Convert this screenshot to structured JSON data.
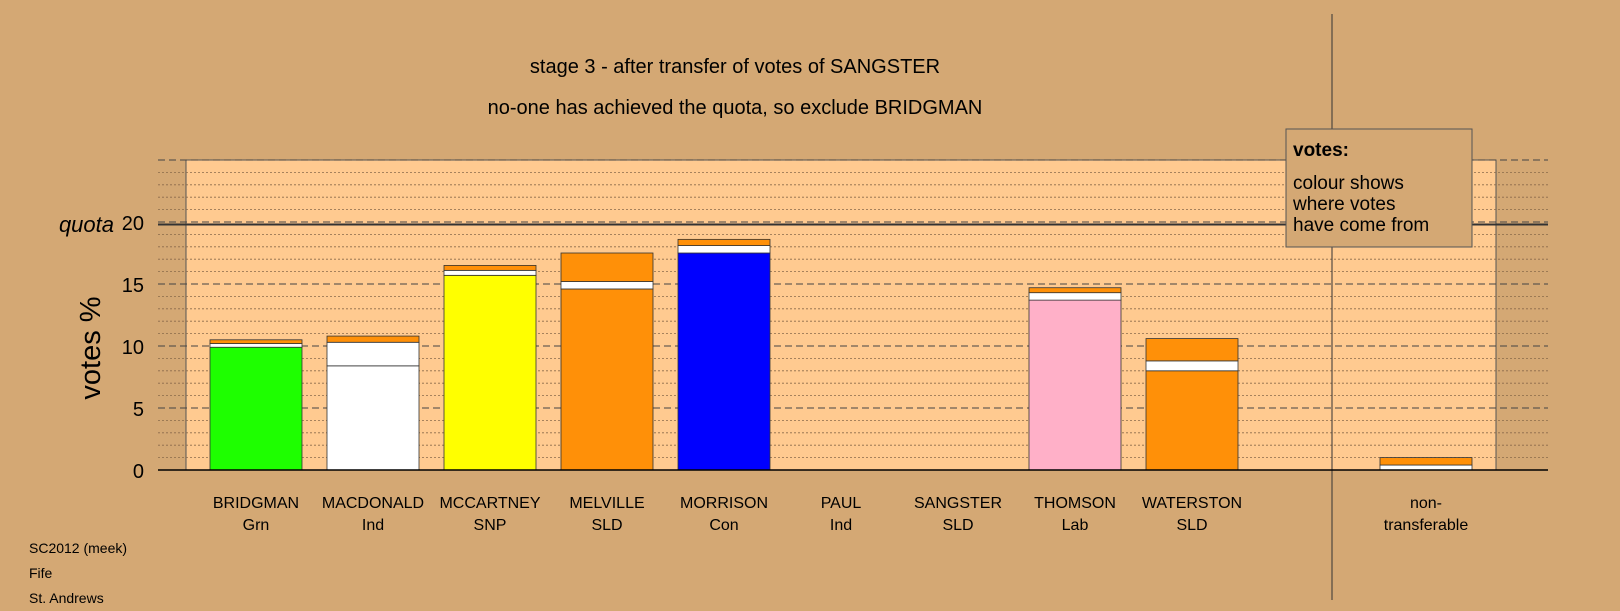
{
  "chart_data": {
    "type": "bar",
    "stacked": true,
    "title": "stage 3 - after transfer of votes of SANGSTER",
    "subtitle": "no-one has achieved the quota, so exclude BRIDGMAN",
    "ylabel": "votes %",
    "ylim": [
      0,
      25
    ],
    "yticks": [
      0,
      5,
      10,
      15,
      20
    ],
    "grid": true,
    "quota": {
      "label": "quota",
      "value": 19.8
    },
    "categories": [
      {
        "name": "BRIDGMAN",
        "party": "Grn"
      },
      {
        "name": "MACDONALD",
        "party": "Ind"
      },
      {
        "name": "MCCARTNEY",
        "party": "SNP"
      },
      {
        "name": "MELVILLE",
        "party": "SLD"
      },
      {
        "name": "MORRISON",
        "party": "Con"
      },
      {
        "name": "PAUL",
        "party": "Ind"
      },
      {
        "name": "SANGSTER",
        "party": "SLD"
      },
      {
        "name": "THOMSON",
        "party": "Lab"
      },
      {
        "name": "WATERSTON",
        "party": "SLD"
      },
      {
        "name": "",
        "party": ""
      },
      {
        "name": "non-",
        "party": "transferable"
      }
    ],
    "stacks": [
      [
        {
          "value": 9.9,
          "color": "#1eff00"
        },
        {
          "value": 0.3,
          "color": "#ffffff"
        },
        {
          "value": 0.3,
          "color": "#ff9008"
        }
      ],
      [
        {
          "value": 8.4,
          "color": "#ffffff"
        },
        {
          "value": 1.9,
          "color": "#ffffff"
        },
        {
          "value": 0.5,
          "color": "#ff9008"
        }
      ],
      [
        {
          "value": 15.7,
          "color": "#ffff00"
        },
        {
          "value": 0.4,
          "color": "#ffffff"
        },
        {
          "value": 0.4,
          "color": "#ff9008"
        }
      ],
      [
        {
          "value": 14.6,
          "color": "#ff9008"
        },
        {
          "value": 0.6,
          "color": "#ffffff"
        },
        {
          "value": 2.3,
          "color": "#ff9008"
        }
      ],
      [
        {
          "value": 17.5,
          "color": "#0000ff"
        },
        {
          "value": 0.6,
          "color": "#ffffff"
        },
        {
          "value": 0.5,
          "color": "#ff9008"
        }
      ],
      [],
      [],
      [
        {
          "value": 13.7,
          "color": "#ffb0c8"
        },
        {
          "value": 0.6,
          "color": "#ffffff"
        },
        {
          "value": 0.4,
          "color": "#ff9008"
        }
      ],
      [
        {
          "value": 8.0,
          "color": "#ff9008"
        },
        {
          "value": 0.8,
          "color": "#ffffff"
        },
        {
          "value": 1.8,
          "color": "#ff9008"
        }
      ],
      [],
      [
        {
          "value": 0.4,
          "color": "#ffffff"
        },
        {
          "value": 0.6,
          "color": "#ff9008"
        }
      ]
    ],
    "legend": {
      "title": "votes:",
      "lines": [
        "colour shows",
        "where votes",
        "have come from"
      ]
    }
  },
  "footer": {
    "line1": "SC2012 (meek)",
    "line2": "Fife",
    "line3": "St. Andrews"
  },
  "colors": {
    "background": "#d4a874",
    "plot_area": "#ffca90",
    "legend_bg": "#d4a874"
  }
}
